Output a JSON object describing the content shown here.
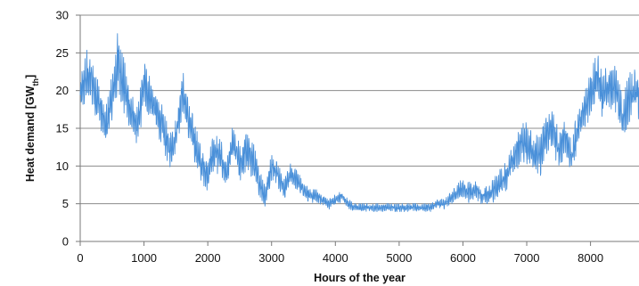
{
  "chart_data": {
    "type": "line",
    "title": "",
    "xlabel": "Hours of the year",
    "ylabel": {
      "prefix": "Heat demand [GW",
      "subscript": "th",
      "suffix": "]"
    },
    "xlim": [
      0,
      8760
    ],
    "ylim": [
      0,
      30
    ],
    "x_ticks": [
      0,
      1000,
      2000,
      3000,
      4000,
      5000,
      6000,
      7000,
      8000
    ],
    "y_ticks": [
      0,
      5,
      10,
      15,
      20,
      25,
      30
    ],
    "grid": "horizontal",
    "legend": "none",
    "color": "#4a90d9",
    "series": [
      {
        "x": [
          0,
          100,
          200,
          300,
          400,
          500,
          600,
          700,
          800,
          900,
          1000,
          1100,
          1200,
          1300,
          1400,
          1500,
          1600,
          1700,
          1800,
          1900,
          2000,
          2100,
          2200,
          2300,
          2400,
          2500,
          2600,
          2700,
          2800,
          2900,
          3000,
          3100,
          3200,
          3300,
          3400,
          3500,
          3600,
          3700,
          3800,
          3900,
          4000,
          4100,
          4200,
          4300,
          4400,
          4500,
          4600,
          4700,
          4800,
          4900,
          5000,
          5100,
          5200,
          5300,
          5400,
          5500,
          5600,
          5700,
          5800,
          5900,
          6000,
          6100,
          6200,
          6300,
          6400,
          6500,
          6600,
          6700,
          6800,
          6900,
          7000,
          7100,
          7200,
          7300,
          7400,
          7500,
          7600,
          7700,
          7800,
          7900,
          8000,
          8100,
          8200,
          8300,
          8400,
          8500,
          8600,
          8700,
          8760
        ],
        "values": [
          19,
          22,
          21,
          18,
          15,
          19,
          24,
          20,
          17,
          15,
          21,
          19,
          17,
          15,
          12,
          14,
          20,
          16,
          13,
          10,
          9,
          12,
          11,
          9,
          13,
          10,
          12,
          11,
          8,
          6,
          10,
          9,
          7,
          9,
          8,
          7,
          6,
          6,
          5.5,
          5,
          5.5,
          6,
          5,
          4.5,
          4.5,
          4.5,
          4.5,
          4.5,
          4.5,
          4.5,
          4.5,
          4.5,
          4.5,
          4.5,
          4.5,
          4.5,
          5,
          5,
          5.5,
          6.5,
          7,
          6.5,
          7,
          6,
          6,
          7,
          8,
          9,
          11,
          13,
          13,
          12,
          11,
          14,
          15,
          12,
          14,
          11,
          15,
          17,
          20,
          22,
          19,
          21,
          20,
          16,
          19,
          20,
          19
        ],
        "noise": [
          3,
          4,
          3.5,
          3.5,
          3,
          4,
          5,
          4,
          3,
          3,
          3.5,
          3,
          3,
          3,
          2.5,
          2.5,
          3.5,
          3,
          3,
          2.5,
          2.5,
          3,
          3,
          3,
          3,
          3,
          3,
          3,
          2,
          2,
          2,
          2,
          1.5,
          1.5,
          1.5,
          1.2,
          1,
          1,
          0.8,
          0.8,
          0.8,
          0.8,
          0.7,
          0.6,
          0.6,
          0.6,
          0.6,
          0.6,
          0.6,
          0.6,
          0.6,
          0.6,
          0.6,
          0.6,
          0.6,
          0.6,
          0.7,
          0.8,
          1,
          1.2,
          1.5,
          1.5,
          1.5,
          1.3,
          1.5,
          1.8,
          2,
          2.2,
          2.5,
          3,
          3,
          3,
          3,
          3,
          3,
          3,
          3,
          2.5,
          3,
          3,
          3.5,
          3.5,
          3.5,
          3.5,
          3.5,
          3.5,
          3.5,
          3.5,
          3.5
        ]
      }
    ]
  }
}
